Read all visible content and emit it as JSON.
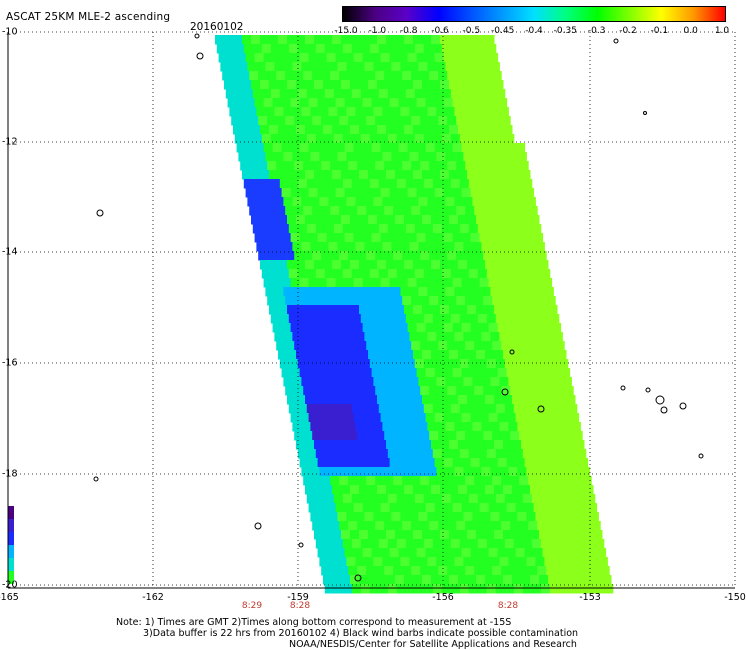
{
  "header": {
    "title": "ASCAT 25KM MLE-2 ascending",
    "date": "20160102"
  },
  "colorbar": {
    "ticks": [
      "-15.0",
      "-1.0",
      "-0.8",
      "-0.6",
      "-0.5",
      "-0.45",
      "-0.4",
      "-0.35",
      "-0.3",
      "-0.2",
      "-0.1",
      "0.0",
      "1.0"
    ],
    "colors": [
      "#000000",
      "#4b0082",
      "#5a00c8",
      "#0000ff",
      "#0050ff",
      "#0099ff",
      "#00e0ff",
      "#00ff80",
      "#00ff00",
      "#80ff00",
      "#ffff00",
      "#ff9900",
      "#ff0000"
    ]
  },
  "map": {
    "lat_labels": [
      "-10",
      "-12",
      "-14",
      "-16",
      "-18",
      "-20"
    ],
    "lon_labels": [
      "-165",
      "-162",
      "-159",
      "-156",
      "-153",
      "-150"
    ],
    "time_labels": [
      "8:29",
      "8:28",
      "8:28"
    ]
  },
  "notes": {
    "line1": "Note: 1) Times are GMT 2)Times along bottom correspond to measurement at -15S",
    "line2": "3)Data buffer is 22 hrs from 20160102 4) Black wind barbs indicate possible contamination",
    "line3": "NOAA/NESDIS/Center for Satellite Applications and Research"
  }
}
